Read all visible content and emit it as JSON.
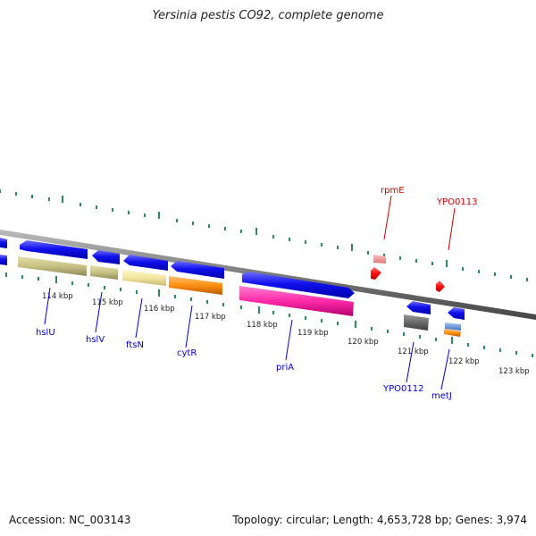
{
  "title": "Yersinia pestis CO92, complete genome",
  "footer": {
    "accession": "Accession: NC_003143",
    "topology": "Topology: circular; Length: 4,653,728 bp; Genes: 3,974"
  },
  "colors": {
    "backbone": "#888888",
    "tick_outer": "#2e8b57",
    "tick_inner": "#2e8b57",
    "forward_gene": "#0a0ae6",
    "reverse_label": "#00008b",
    "red_label": "#cc0000"
  },
  "scale_labels": [
    "114 kbp",
    "115 kbp",
    "116 kbp",
    "117 kbp",
    "118 kbp",
    "119 kbp",
    "120 kbp",
    "121 kbp",
    "122 kbp",
    "123 kbp"
  ],
  "genes_labeled": [
    {
      "name": "hslU",
      "color": "#0000cc"
    },
    {
      "name": "hslV",
      "color": "#0000cc"
    },
    {
      "name": "ftsN",
      "color": "#0000cc"
    },
    {
      "name": "cytR",
      "color": "#0000cc"
    },
    {
      "name": "priA",
      "color": "#0000cc"
    },
    {
      "name": "YPO0112",
      "color": "#0000cc"
    },
    {
      "name": "metJ",
      "color": "#0000cc"
    },
    {
      "name": "rpmE",
      "color": "#cc0000"
    },
    {
      "name": "YPO0113",
      "color": "#cc0000"
    }
  ]
}
